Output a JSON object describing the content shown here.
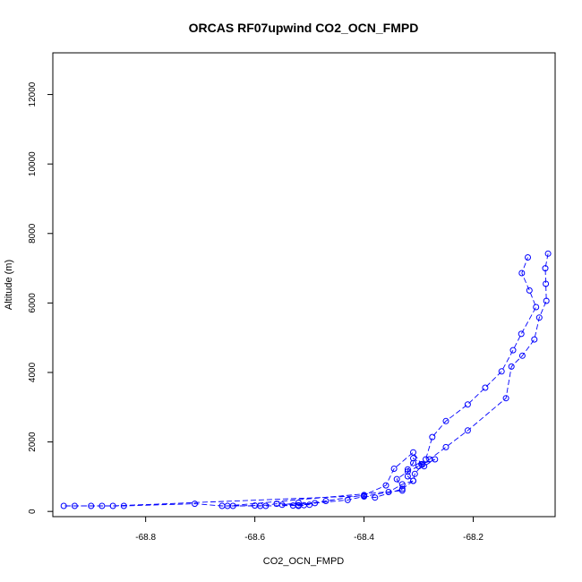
{
  "chart_data": {
    "type": "line",
    "title": "ORCAS RF07upwind CO2_OCN_FMPD",
    "xlabel": "CO2_OCN_FMPD",
    "ylabel": "Altitude (m)",
    "xlim": [
      -68.97,
      -68.05
    ],
    "ylim": [
      -150,
      13200
    ],
    "x_ticks": [
      -68.8,
      -68.6,
      -68.4,
      -68.2
    ],
    "x_tick_labels": [
      "-68.8",
      "-68.6",
      "-68.4",
      "-68.2"
    ],
    "y_ticks": [
      0,
      2000,
      4000,
      6000,
      8000,
      10000,
      12000
    ],
    "y_tick_labels": [
      "0",
      "2000",
      "4000",
      "6000",
      "8000",
      "10000",
      "12000"
    ],
    "grid": false,
    "legend": "none",
    "colors": {
      "series": "#0000ff"
    },
    "series": [
      {
        "points": [
          [
            -68.063,
            7420
          ],
          [
            -68.068,
            7000
          ],
          [
            -68.067,
            6550
          ],
          [
            -68.066,
            6060
          ],
          [
            -68.079,
            5580
          ],
          [
            -68.088,
            4950
          ],
          [
            -68.11,
            4480
          ],
          [
            -68.13,
            4170
          ],
          [
            -68.14,
            3260
          ],
          [
            -68.21,
            2330
          ],
          [
            -68.25,
            1850
          ],
          [
            -68.28,
            1500
          ],
          [
            -68.293,
            1350
          ],
          [
            -68.307,
            1080
          ],
          [
            -68.31,
            880
          ],
          [
            -68.33,
            780
          ],
          [
            -68.355,
            560
          ],
          [
            -68.4,
            430
          ],
          [
            -68.43,
            330
          ],
          [
            -68.49,
            240
          ],
          [
            -68.51,
            180
          ],
          [
            -68.52,
            160
          ],
          [
            -68.53,
            170
          ],
          [
            -68.58,
            160
          ],
          [
            -68.6,
            170
          ],
          [
            -68.64,
            160
          ],
          [
            -68.66,
            160
          ],
          [
            -68.71,
            220
          ],
          [
            -68.84,
            160
          ],
          [
            -68.88,
            160
          ],
          [
            -68.95,
            160
          ],
          [
            -68.93,
            160
          ],
          [
            -68.9,
            160
          ],
          [
            -68.86,
            160
          ],
          [
            -68.4,
            450
          ],
          [
            -68.38,
            400
          ],
          [
            -68.33,
            650
          ],
          [
            -68.31,
            880
          ],
          [
            -68.32,
            1010
          ],
          [
            -68.32,
            1210
          ],
          [
            -68.31,
            1390
          ],
          [
            -68.31,
            1530
          ],
          [
            -68.29,
            1300
          ],
          [
            -68.27,
            1500
          ],
          [
            -68.295,
            1360
          ],
          [
            -68.31,
            1700
          ],
          [
            -68.345,
            1230
          ],
          [
            -68.36,
            750
          ],
          [
            -68.4,
            470
          ],
          [
            -68.47,
            300
          ],
          [
            -68.52,
            180
          ],
          [
            -68.55,
            190
          ],
          [
            -68.52,
            250
          ],
          [
            -68.5,
            190
          ],
          [
            -68.56,
            220
          ],
          [
            -68.59,
            160
          ],
          [
            -68.65,
            160
          ],
          [
            -68.33,
            600
          ],
          [
            -68.34,
            930
          ],
          [
            -68.32,
            1150
          ],
          [
            -68.3,
            1300
          ],
          [
            -68.287,
            1500
          ],
          [
            -68.275,
            2140
          ],
          [
            -68.25,
            2600
          ],
          [
            -68.21,
            3080
          ],
          [
            -68.178,
            3560
          ],
          [
            -68.148,
            4030
          ],
          [
            -68.127,
            4640
          ],
          [
            -68.112,
            5110
          ],
          [
            -68.085,
            5880
          ],
          [
            -68.097,
            6360
          ],
          [
            -68.111,
            6860
          ],
          [
            -68.1,
            7310
          ]
        ]
      }
    ]
  }
}
